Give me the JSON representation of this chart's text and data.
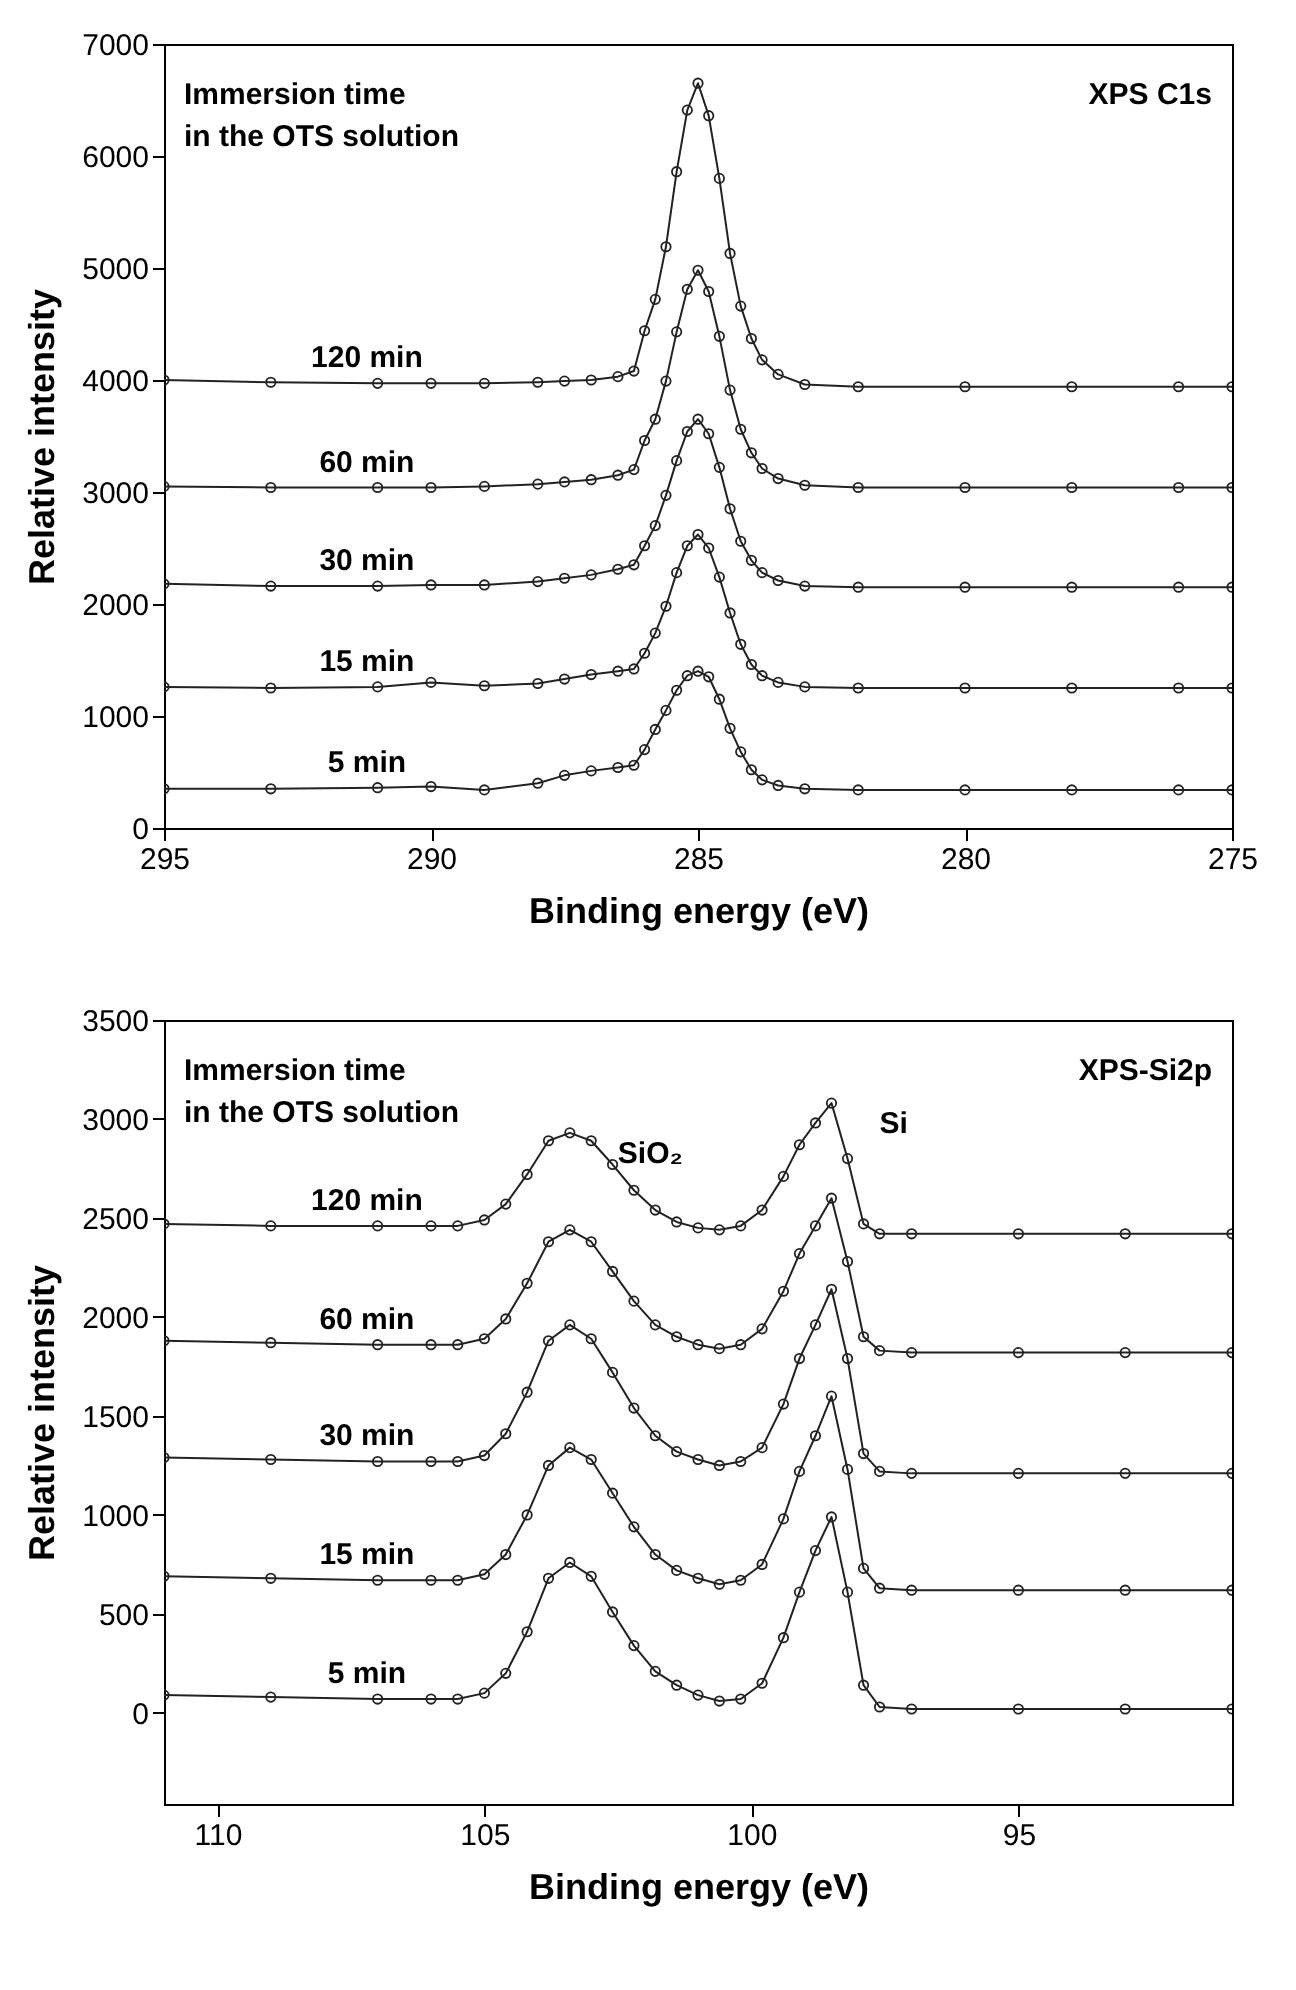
{
  "chart_data": [
    {
      "type": "line",
      "xlabel": "Binding energy (eV)",
      "ylabel": "Relative intensity",
      "xlim": [
        295,
        275
      ],
      "xticks": [
        295,
        290,
        285,
        280,
        275
      ],
      "ylim": [
        0,
        7000
      ],
      "yticks": [
        0,
        1000,
        2000,
        3000,
        4000,
        5000,
        6000,
        7000
      ],
      "marker": "circle",
      "line_style": "solid",
      "annotations": [
        "Immersion time\nin the OTS solution",
        "XPS C1s"
      ],
      "x": [
        295,
        293,
        291,
        290,
        289,
        288,
        287.5,
        287,
        286.5,
        286.2,
        286,
        285.8,
        285.6,
        285.4,
        285.2,
        285,
        284.8,
        284.6,
        284.4,
        284.2,
        284,
        283.8,
        283.5,
        283,
        282,
        280,
        278,
        276,
        275
      ],
      "series": [
        {
          "name": "120 min",
          "color": "#222222",
          "values": [
            4000,
            3980,
            3970,
            3970,
            3970,
            3980,
            3990,
            4000,
            4030,
            4080,
            4440,
            4720,
            5190,
            5860,
            6410,
            6650,
            6360,
            5800,
            5130,
            4660,
            4370,
            4180,
            4050,
            3960,
            3940,
            3940,
            3940,
            3940,
            3940
          ]
        },
        {
          "name": "60 min",
          "color": "#222222",
          "values": [
            3050,
            3040,
            3040,
            3040,
            3050,
            3070,
            3090,
            3110,
            3150,
            3200,
            3460,
            3650,
            3990,
            4430,
            4810,
            4980,
            4790,
            4390,
            3910,
            3560,
            3350,
            3210,
            3120,
            3060,
            3040,
            3040,
            3040,
            3040,
            3040
          ]
        },
        {
          "name": "30 min",
          "color": "#222222",
          "values": [
            2180,
            2160,
            2160,
            2170,
            2170,
            2200,
            2230,
            2260,
            2310,
            2350,
            2520,
            2700,
            2970,
            3280,
            3540,
            3650,
            3520,
            3220,
            2850,
            2560,
            2390,
            2280,
            2210,
            2160,
            2150,
            2150,
            2150,
            2150,
            2150
          ]
        },
        {
          "name": "15 min",
          "color": "#222222",
          "values": [
            1260,
            1250,
            1260,
            1300,
            1270,
            1290,
            1330,
            1370,
            1400,
            1420,
            1560,
            1740,
            1980,
            2280,
            2520,
            2620,
            2500,
            2240,
            1920,
            1640,
            1460,
            1360,
            1300,
            1260,
            1250,
            1250,
            1250,
            1250,
            1250
          ]
        },
        {
          "name": "5 min",
          "color": "#222222",
          "values": [
            350,
            350,
            360,
            370,
            340,
            400,
            470,
            510,
            540,
            560,
            700,
            880,
            1050,
            1230,
            1360,
            1400,
            1350,
            1150,
            890,
            680,
            520,
            430,
            380,
            350,
            340,
            340,
            340,
            340,
            340
          ]
        }
      ]
    },
    {
      "type": "line",
      "xlabel": "Binding energy (eV)",
      "ylabel": "Relative intensity",
      "xlim": [
        111,
        91
      ],
      "xticks": [
        110,
        105,
        100,
        95
      ],
      "ylim": [
        -460,
        3500
      ],
      "yticks": [
        0,
        500,
        1000,
        1500,
        2000,
        2500,
        3000,
        3500
      ],
      "marker": "circle",
      "line_style": "solid",
      "annotations": [
        "Immersion time\nin the OTS solution",
        "XPS-Si2p",
        "SiO₂",
        "Si"
      ],
      "x": [
        111,
        109,
        107,
        106,
        105.5,
        105,
        104.6,
        104.2,
        103.8,
        103.4,
        103,
        102.6,
        102.2,
        101.8,
        101.4,
        101,
        100.6,
        100.2,
        99.8,
        99.4,
        99.1,
        98.8,
        98.5,
        98.2,
        97.9,
        97.6,
        97,
        95,
        93,
        91
      ],
      "series": [
        {
          "name": "120 min",
          "color": "#222222",
          "values": [
            2470,
            2460,
            2460,
            2460,
            2460,
            2490,
            2570,
            2720,
            2890,
            2930,
            2890,
            2770,
            2640,
            2540,
            2480,
            2450,
            2440,
            2460,
            2540,
            2710,
            2870,
            2980,
            3080,
            2800,
            2470,
            2420,
            2420,
            2420,
            2420,
            2420
          ]
        },
        {
          "name": "60 min",
          "color": "#222222",
          "values": [
            1880,
            1870,
            1860,
            1860,
            1860,
            1890,
            1990,
            2170,
            2380,
            2440,
            2380,
            2230,
            2080,
            1960,
            1900,
            1860,
            1840,
            1860,
            1940,
            2130,
            2320,
            2460,
            2600,
            2280,
            1900,
            1830,
            1820,
            1820,
            1820,
            1820
          ]
        },
        {
          "name": "30 min",
          "color": "#222222",
          "values": [
            1290,
            1280,
            1270,
            1270,
            1270,
            1300,
            1410,
            1620,
            1880,
            1960,
            1890,
            1720,
            1540,
            1400,
            1320,
            1280,
            1250,
            1270,
            1340,
            1560,
            1790,
            1960,
            2140,
            1790,
            1310,
            1220,
            1210,
            1210,
            1210,
            1210
          ]
        },
        {
          "name": "15 min",
          "color": "#222222",
          "values": [
            690,
            680,
            670,
            670,
            670,
            700,
            800,
            1000,
            1250,
            1340,
            1280,
            1110,
            940,
            800,
            720,
            680,
            650,
            670,
            750,
            980,
            1220,
            1400,
            1600,
            1230,
            730,
            630,
            620,
            620,
            620,
            620
          ]
        },
        {
          "name": "5 min",
          "color": "#222222",
          "values": [
            90,
            80,
            70,
            70,
            70,
            100,
            200,
            410,
            680,
            760,
            690,
            510,
            340,
            210,
            140,
            90,
            60,
            70,
            150,
            380,
            610,
            820,
            990,
            610,
            140,
            30,
            20,
            20,
            20,
            20
          ]
        }
      ]
    }
  ]
}
